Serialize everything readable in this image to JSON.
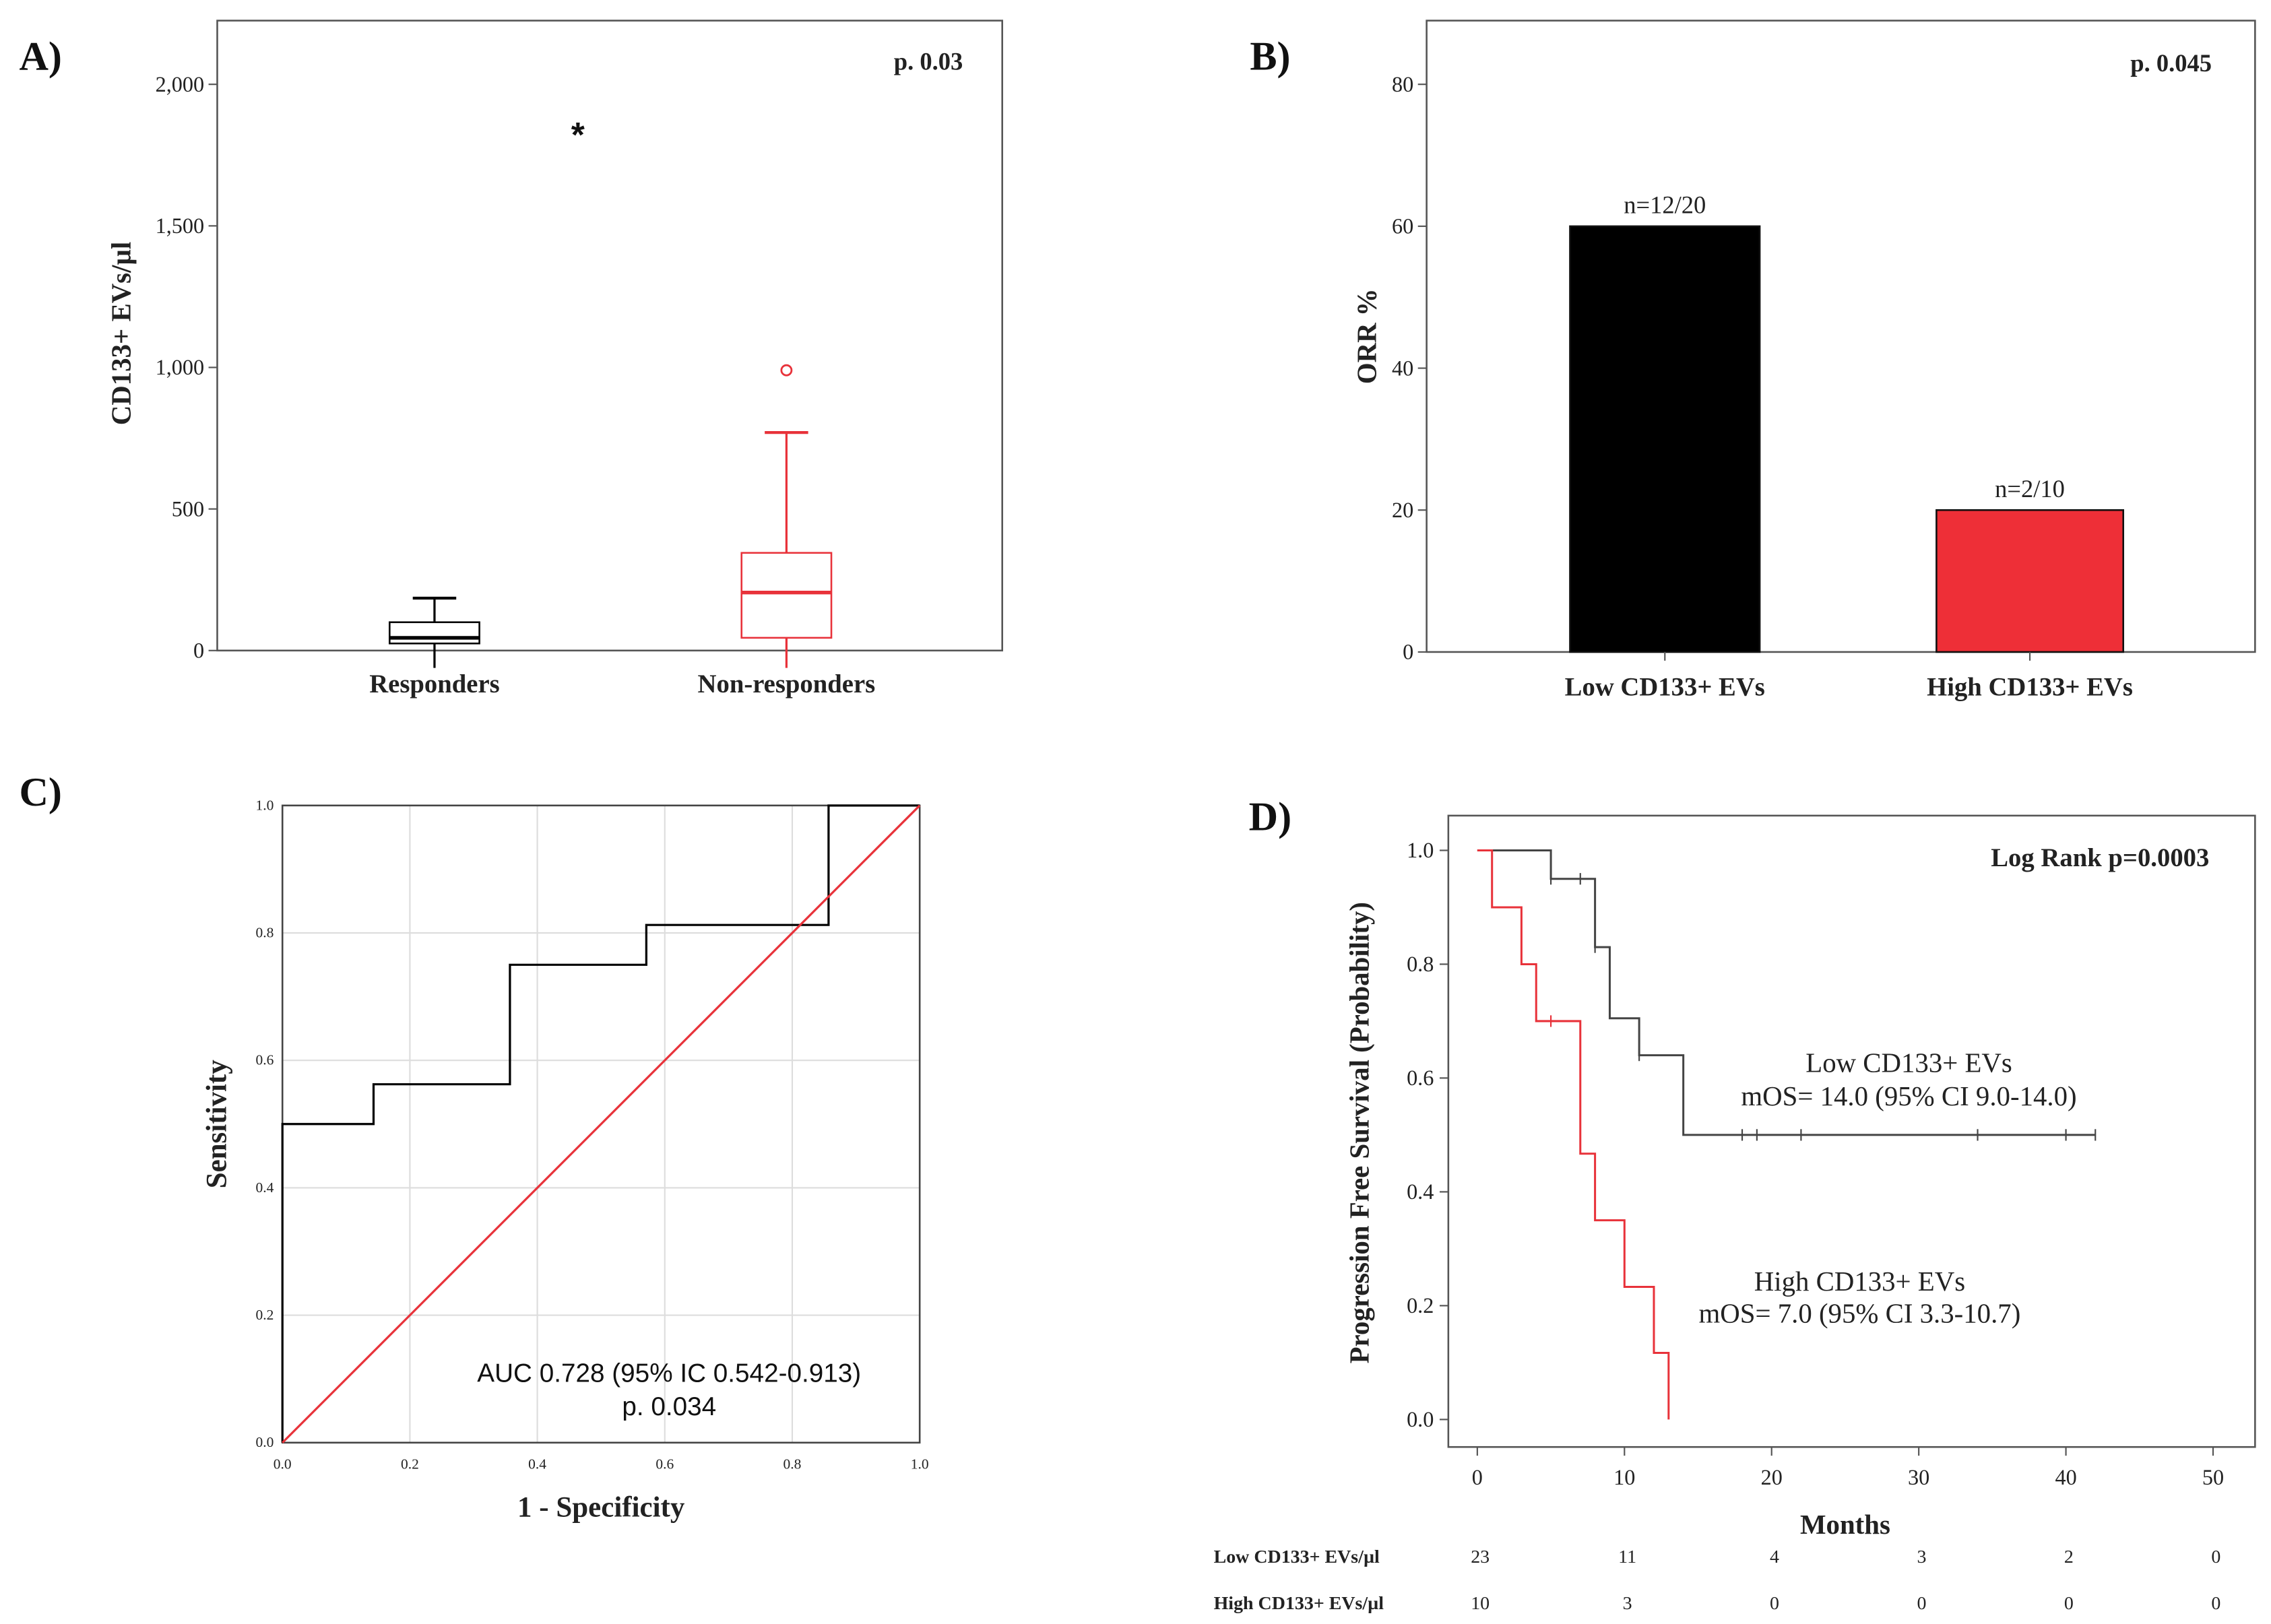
{
  "chart_data": [
    {
      "panel": "A)",
      "type": "boxplot",
      "ylabel": "CD133+ EVs/µl",
      "annotation": "p. 0.03",
      "ylim": [
        0,
        2200
      ],
      "yticks": [
        0,
        500,
        1000,
        1500,
        2000
      ],
      "ytick_labels": [
        "0",
        "500",
        "1,000",
        "1,500",
        "2,000"
      ],
      "categories": [
        "Responders",
        "Non-responders"
      ],
      "boxes": [
        {
          "name": "Responders",
          "min": 0,
          "q1": 25,
          "median": 45,
          "q3": 100,
          "max": 185,
          "color": "#000000",
          "extremes": [
            {
              "value": 1840,
              "marker": "*"
            }
          ]
        },
        {
          "name": "Non-responders",
          "min": 0,
          "q1": 45,
          "median": 205,
          "q3": 345,
          "max": 770,
          "color": "#e8323a",
          "outliers": [
            {
              "value": 990,
              "marker": "o"
            }
          ]
        }
      ]
    },
    {
      "panel": "B)",
      "type": "bar",
      "ylabel": "ORR %",
      "annotation": "p. 0.045",
      "ylim": [
        0,
        88
      ],
      "yticks": [
        0,
        20,
        40,
        60,
        80
      ],
      "categories": [
        "Low CD133+ EVs",
        "High CD133+ EVs"
      ],
      "values": [
        60,
        20
      ],
      "data_labels": [
        "n=12/20",
        "n=2/10"
      ],
      "colors": [
        "#000000",
        "#ee2f37"
      ]
    },
    {
      "panel": "C)",
      "type": "line",
      "xlabel": "1 - Specificity",
      "ylabel": "Sensitivity",
      "xlim": [
        0,
        1
      ],
      "ylim": [
        0,
        1
      ],
      "ticks": [
        "0.0",
        "0.2",
        "0.4",
        "0.6",
        "0.8",
        "1.0"
      ],
      "grid": true,
      "annotation": [
        "AUC 0.728 (95% IC 0.542-0.913)",
        "p. 0.034"
      ],
      "series": [
        {
          "name": "ROC",
          "color": "#000000",
          "points": [
            [
              0,
              0
            ],
            [
              0,
              0.5
            ],
            [
              0.143,
              0.5
            ],
            [
              0.143,
              0.5625
            ],
            [
              0.357,
              0.5625
            ],
            [
              0.357,
              0.75
            ],
            [
              0.571,
              0.75
            ],
            [
              0.571,
              0.8125
            ],
            [
              0.857,
              0.8125
            ],
            [
              0.857,
              1
            ],
            [
              1,
              1
            ]
          ]
        },
        {
          "name": "Reference",
          "color": "#e8323a",
          "points": [
            [
              0,
              0
            ],
            [
              1,
              1
            ]
          ]
        }
      ]
    },
    {
      "panel": "D)",
      "type": "line",
      "xlabel": "Months",
      "ylabel": "Progression Free Survival (Probability)",
      "xlim": [
        -3,
        52
      ],
      "ylim": [
        -0.05,
        1.07
      ],
      "xticks": [
        0,
        10,
        20,
        30,
        40,
        50
      ],
      "yticks": [
        "0.0",
        "0.2",
        "0.4",
        "0.6",
        "0.8",
        "1.0"
      ],
      "annotation": "Log Rank p=0.0003",
      "series": [
        {
          "name": "Low CD133+ EVs",
          "label2": "mOS= 14.0 (95% CI 9.0-14.0)",
          "color": "#444444",
          "steps": [
            [
              0,
              1
            ],
            [
              5,
              0.95
            ],
            [
              8,
              0.83
            ],
            [
              9,
              0.705
            ],
            [
              11,
              0.64
            ],
            [
              14,
              0.5
            ],
            [
              42,
              0.5
            ]
          ],
          "censored": [
            [
              5,
              0.95
            ],
            [
              7,
              0.95
            ],
            [
              8,
              0.83
            ],
            [
              11,
              0.64
            ],
            [
              18,
              0.5
            ],
            [
              19,
              0.5
            ],
            [
              22,
              0.5
            ],
            [
              34,
              0.5
            ],
            [
              40,
              0.5
            ],
            [
              42,
              0.5
            ]
          ]
        },
        {
          "name": "High CD133+ EVs",
          "label2": "mOS= 7.0 (95% CI 3.3-10.7)",
          "color": "#e8323a",
          "steps": [
            [
              0,
              1
            ],
            [
              1,
              0.9
            ],
            [
              3,
              0.8
            ],
            [
              4,
              0.7
            ],
            [
              7,
              0.467
            ],
            [
              8,
              0.35
            ],
            [
              10,
              0.233
            ],
            [
              12,
              0.117
            ],
            [
              13,
              0
            ],
            [
              13,
              0
            ]
          ],
          "censored": [
            [
              5,
              0.7
            ]
          ]
        }
      ],
      "risk_table": {
        "times": [
          0,
          10,
          20,
          30,
          40,
          50
        ],
        "rows": [
          {
            "label": "Low  CD133+ EVs/µl",
            "values": [
              "23",
              "11",
              "4",
              "3",
              "2",
              "0"
            ]
          },
          {
            "label": "High CD133+ EVs/µl",
            "values": [
              "10",
              "3",
              "0",
              "0",
              "0",
              "0"
            ]
          }
        ]
      }
    }
  ]
}
